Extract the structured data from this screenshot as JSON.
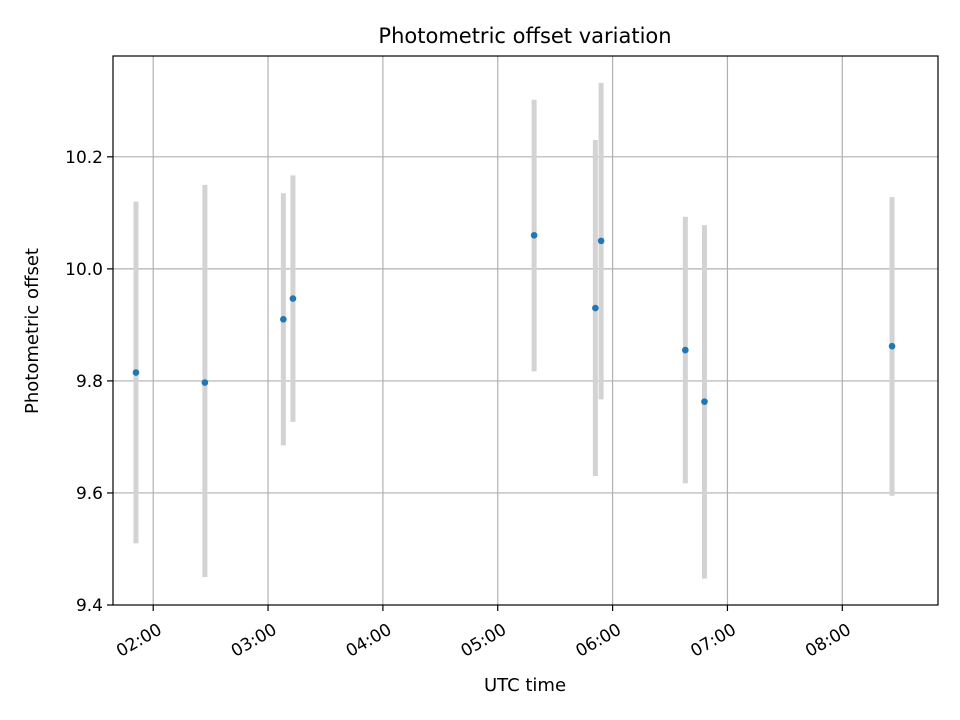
{
  "chart_data": {
    "type": "scatter",
    "title": "Photometric offset variation",
    "xlabel": "UTC time",
    "ylabel": "Photometric offset",
    "x_tick_labels": [
      "02:00",
      "03:00",
      "04:00",
      "05:00",
      "06:00",
      "07:00",
      "08:00"
    ],
    "x_ticks": [
      "02:00",
      "03:00",
      "04:00",
      "05:00",
      "06:00",
      "07:00",
      "08:00"
    ],
    "y_ticks": [
      9.4,
      9.6,
      9.8,
      10.0,
      10.2
    ],
    "y_tick_labels": [
      "9.4",
      "9.6",
      "9.8",
      "10.0",
      "10.2"
    ],
    "xlim": [
      "01:39",
      "08:50"
    ],
    "ylim": [
      9.4,
      10.38
    ],
    "grid": true,
    "point_color": "#1f77b4",
    "errorbar_color": "#d3d3d3",
    "points": [
      {
        "x": "01:51",
        "y": 9.815,
        "ylow": 9.51,
        "yhigh": 10.12
      },
      {
        "x": "02:27",
        "y": 9.797,
        "ylow": 9.45,
        "yhigh": 10.15
      },
      {
        "x": "03:08",
        "y": 9.91,
        "ylow": 9.685,
        "yhigh": 10.135
      },
      {
        "x": "03:13",
        "y": 9.947,
        "ylow": 9.727,
        "yhigh": 10.167
      },
      {
        "x": "05:19",
        "y": 10.06,
        "ylow": 9.817,
        "yhigh": 10.302
      },
      {
        "x": "05:51",
        "y": 9.93,
        "ylow": 9.63,
        "yhigh": 10.23
      },
      {
        "x": "05:54",
        "y": 10.05,
        "ylow": 9.767,
        "yhigh": 10.332
      },
      {
        "x": "06:38",
        "y": 9.855,
        "ylow": 9.617,
        "yhigh": 10.093
      },
      {
        "x": "06:48",
        "y": 9.763,
        "ylow": 9.447,
        "yhigh": 10.078
      },
      {
        "x": "08:26",
        "y": 9.862,
        "ylow": 9.595,
        "yhigh": 10.128
      }
    ]
  }
}
